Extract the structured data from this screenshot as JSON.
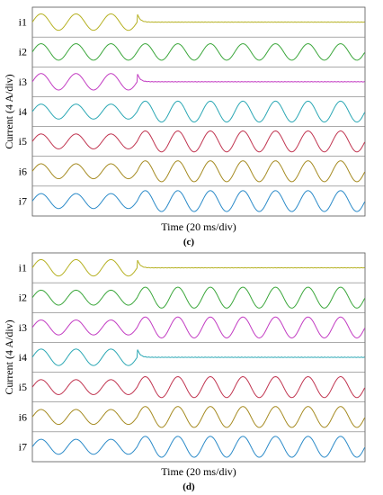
{
  "chart_data": [
    {
      "type": "line",
      "panel_label": "(c)",
      "ylabel": "Current (4 A/div)",
      "xlabel": "Time (20 ms/div)",
      "x_divisions": 10,
      "series": [
        {
          "name": "i1",
          "color": "#b5b020",
          "amp_before_div": 0.55,
          "amp_after_div": 0.0,
          "cycles_before": 3,
          "cycles_after": 0,
          "ends_after_event": true
        },
        {
          "name": "i2",
          "color": "#3aa63a",
          "amp_before_div": 0.55,
          "amp_after_div": 0.55,
          "cycles_before": 3,
          "cycles_after": 7
        },
        {
          "name": "i3",
          "color": "#c23bc2",
          "amp_before_div": 0.55,
          "amp_after_div": 0.0,
          "cycles_before": 3,
          "cycles_after": 0,
          "ends_after_event": true
        },
        {
          "name": "i4",
          "color": "#2aa7b4",
          "amp_before_div": 0.5,
          "amp_after_div": 0.7,
          "cycles_before": 3,
          "cycles_after": 7
        },
        {
          "name": "i5",
          "color": "#c0344f",
          "amp_before_div": 0.5,
          "amp_after_div": 0.7,
          "cycles_before": 3,
          "cycles_after": 7
        },
        {
          "name": "i6",
          "color": "#a58a20",
          "amp_before_div": 0.5,
          "amp_after_div": 0.7,
          "cycles_before": 3,
          "cycles_after": 7
        },
        {
          "name": "i7",
          "color": "#2a8ac8",
          "amp_before_div": 0.5,
          "amp_after_div": 0.7,
          "cycles_before": 3,
          "cycles_after": 7
        }
      ]
    },
    {
      "type": "line",
      "panel_label": "(d)",
      "ylabel": "Current (4 A/div)",
      "xlabel": "Time (20 ms/div)",
      "x_divisions": 10,
      "series": [
        {
          "name": "i1",
          "color": "#b5b020",
          "amp_before_div": 0.55,
          "amp_after_div": 0.0,
          "cycles_before": 3,
          "cycles_after": 0,
          "ends_after_event": true
        },
        {
          "name": "i2",
          "color": "#3aa63a",
          "amp_before_div": 0.5,
          "amp_after_div": 0.7,
          "cycles_before": 3,
          "cycles_after": 7
        },
        {
          "name": "i3",
          "color": "#c23bc2",
          "amp_before_div": 0.5,
          "amp_after_div": 0.7,
          "cycles_before": 3,
          "cycles_after": 7
        },
        {
          "name": "i4",
          "color": "#2aa7b4",
          "amp_before_div": 0.55,
          "amp_after_div": 0.0,
          "cycles_before": 3,
          "cycles_after": 0,
          "ends_after_event": true
        },
        {
          "name": "i5",
          "color": "#c0344f",
          "amp_before_div": 0.5,
          "amp_after_div": 0.7,
          "cycles_before": 3,
          "cycles_after": 7
        },
        {
          "name": "i6",
          "color": "#a58a20",
          "amp_before_div": 0.5,
          "amp_after_div": 0.7,
          "cycles_before": 3,
          "cycles_after": 7
        },
        {
          "name": "i7",
          "color": "#2a8ac8",
          "amp_before_div": 0.5,
          "amp_after_div": 0.7,
          "cycles_before": 3,
          "cycles_after": 7
        }
      ]
    }
  ]
}
